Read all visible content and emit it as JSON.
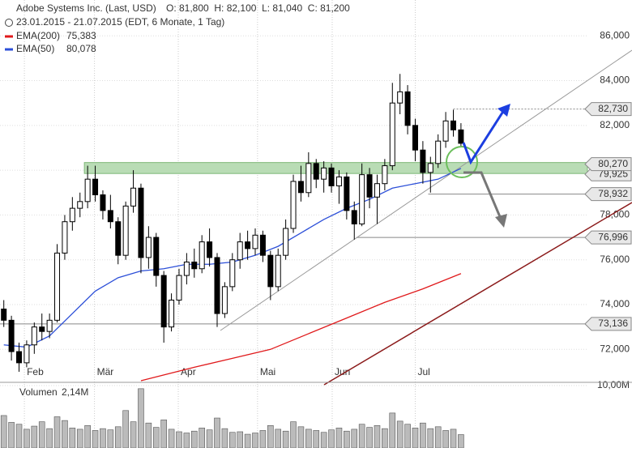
{
  "chart_data": {
    "type": "candlestick",
    "title": "Adobe Systems Inc. (Last, USD)",
    "ohlc_header": "O: 81,800  H: 82,100  L: 81,040  C: 81,200",
    "subtitle": "23.01.2015 - 21.07.2015 (EDT, 6 Monate, 1 Tag)",
    "ylim": [
      70.6,
      87.6
    ],
    "yticks": [
      {
        "value": 72,
        "label": "72,000"
      },
      {
        "value": 74,
        "label": "74,000"
      },
      {
        "value": 76,
        "label": "76,000"
      },
      {
        "value": 78,
        "label": "78,000"
      },
      {
        "value": 80,
        "label": "80,000"
      },
      {
        "value": 82,
        "label": "82,000"
      },
      {
        "value": 84,
        "label": "84,000"
      },
      {
        "value": 86,
        "label": "86,000"
      }
    ],
    "xlim": [
      -0.5,
      76.6
    ],
    "xticks": [
      {
        "value": 2.7,
        "label": "Feb"
      },
      {
        "value": 11.9,
        "label": "Mär"
      },
      {
        "value": 22.9,
        "label": "Apr"
      },
      {
        "value": 33.3,
        "label": "Mai"
      },
      {
        "value": 43.1,
        "label": "Jun"
      },
      {
        "value": 54,
        "label": "Jul"
      }
    ],
    "ohlc": [
      [
        73.8,
        74.2,
        73.0,
        73.3
      ],
      [
        73.3,
        73.5,
        71.5,
        71.9
      ],
      [
        71.9,
        72.3,
        71.0,
        71.4
      ],
      [
        71.4,
        72.4,
        71.2,
        72.2
      ],
      [
        72.2,
        73.2,
        71.8,
        73.0
      ],
      [
        73.0,
        73.6,
        72.4,
        72.8
      ],
      [
        72.8,
        73.6,
        72.5,
        73.3
      ],
      [
        73.3,
        76.7,
        73.2,
        76.3
      ],
      [
        76.3,
        78.0,
        76.0,
        77.7
      ],
      [
        77.7,
        78.8,
        77.3,
        78.3
      ],
      [
        78.3,
        79.0,
        77.9,
        78.6
      ],
      [
        78.6,
        80.2,
        78.3,
        79.6
      ],
      [
        79.6,
        80.2,
        78.6,
        78.9
      ],
      [
        78.9,
        79.1,
        77.8,
        78.2
      ],
      [
        78.2,
        78.9,
        77.4,
        77.7
      ],
      [
        77.7,
        77.9,
        75.8,
        76.2
      ],
      [
        76.2,
        78.6,
        76.0,
        78.4
      ],
      [
        78.4,
        80.0,
        78.1,
        79.2
      ],
      [
        79.2,
        79.4,
        75.4,
        76.1
      ],
      [
        76.1,
        77.5,
        75.6,
        77.0
      ],
      [
        77.0,
        77.2,
        74.8,
        75.3
      ],
      [
        75.3,
        75.5,
        72.3,
        73.0
      ],
      [
        73.0,
        74.5,
        72.8,
        74.2
      ],
      [
        74.2,
        75.6,
        74.0,
        75.3
      ],
      [
        75.3,
        76.3,
        74.9,
        75.9
      ],
      [
        75.9,
        76.5,
        75.2,
        75.6
      ],
      [
        75.6,
        77.1,
        75.4,
        76.8
      ],
      [
        76.8,
        77.4,
        75.7,
        76.1
      ],
      [
        76.1,
        76.3,
        73.0,
        73.6
      ],
      [
        73.6,
        75.0,
        73.4,
        74.8
      ],
      [
        74.8,
        76.3,
        74.6,
        76.0
      ],
      [
        76.0,
        77.2,
        75.6,
        76.8
      ],
      [
        76.8,
        77.3,
        76.0,
        76.5
      ],
      [
        76.5,
        77.4,
        76.2,
        77.1
      ],
      [
        77.1,
        77.3,
        75.9,
        76.2
      ],
      [
        76.2,
        76.4,
        74.2,
        74.8
      ],
      [
        74.8,
        76.5,
        74.6,
        76.2
      ],
      [
        76.2,
        77.8,
        76.0,
        77.4
      ],
      [
        77.4,
        79.8,
        77.2,
        79.5
      ],
      [
        79.5,
        80.2,
        78.6,
        79.0
      ],
      [
        79.0,
        80.8,
        78.8,
        80.3
      ],
      [
        80.3,
        80.5,
        79.2,
        79.6
      ],
      [
        79.6,
        80.4,
        79.0,
        80.1
      ],
      [
        80.1,
        80.3,
        79.0,
        79.3
      ],
      [
        79.3,
        80.0,
        78.5,
        79.7
      ],
      [
        79.7,
        79.9,
        77.8,
        78.2
      ],
      [
        78.2,
        78.6,
        76.9,
        77.6
      ],
      [
        77.6,
        80.3,
        77.5,
        79.8
      ],
      [
        79.8,
        80.1,
        78.3,
        78.8
      ],
      [
        78.8,
        79.8,
        77.6,
        79.4
      ],
      [
        79.4,
        80.5,
        79.1,
        80.2
      ],
      [
        80.2,
        83.9,
        80.0,
        83.0
      ],
      [
        83.0,
        84.3,
        82.5,
        83.5
      ],
      [
        83.5,
        83.8,
        81.6,
        82.0
      ],
      [
        82.0,
        82.3,
        80.4,
        80.9
      ],
      [
        80.9,
        81.3,
        79.4,
        79.9
      ],
      [
        79.9,
        80.6,
        79.0,
        80.3
      ],
      [
        80.3,
        81.6,
        80.1,
        81.3
      ],
      [
        81.3,
        82.6,
        81.0,
        82.2
      ],
      [
        82.2,
        82.7,
        81.5,
        81.8
      ],
      [
        81.8,
        82.1,
        81.04,
        81.2
      ]
    ],
    "series": [
      {
        "name": "EMA(200)",
        "value_label": "75,383",
        "color": "#e0191b",
        "x": [
          18,
          25,
          30,
          35,
          40,
          45,
          50,
          55,
          60
        ],
        "values": [
          70.6,
          71.2,
          71.6,
          72.0,
          72.7,
          73.4,
          74.1,
          74.7,
          75.383
        ]
      },
      {
        "name": "EMA(50)",
        "value_label": "80,078",
        "color": "#2c4fd8",
        "x": [
          0,
          3,
          6,
          9,
          12,
          15,
          18,
          21,
          24,
          27,
          30,
          33,
          36,
          39,
          42,
          45,
          48,
          51,
          54,
          57,
          60
        ],
        "values": [
          72.2,
          72.1,
          72.6,
          73.6,
          74.6,
          75.2,
          75.5,
          75.6,
          75.8,
          75.8,
          75.9,
          76.2,
          76.6,
          77.2,
          77.8,
          78.3,
          78.7,
          79.2,
          79.4,
          79.6,
          80.078
        ]
      }
    ],
    "levels": [
      {
        "value": 82.73,
        "label": "82,730"
      },
      {
        "value": 79.925,
        "label": "79,925"
      },
      {
        "value": 80.27,
        "label": "80,270"
      },
      {
        "value": 78.932,
        "label": "78,932"
      },
      {
        "value": 76.996,
        "label": "76,996"
      },
      {
        "value": 73.136,
        "label": "73,136"
      }
    ],
    "volume": {
      "label": "Volumen",
      "last_label": "2,14M",
      "ylim": [
        0,
        10
      ],
      "yticks": [
        {
          "value": 10,
          "label": "10,00M"
        }
      ],
      "values": [
        5.2,
        4.1,
        3.8,
        3.0,
        3.5,
        4.2,
        3.1,
        5.0,
        4.4,
        3.2,
        3.0,
        3.6,
        2.8,
        3.1,
        2.9,
        3.4,
        6.0,
        4.2,
        9.5,
        4.0,
        3.3,
        4.5,
        3.0,
        2.6,
        2.4,
        2.7,
        3.2,
        2.9,
        4.8,
        3.1,
        2.5,
        2.6,
        2.2,
        2.4,
        2.8,
        3.6,
        3.0,
        2.7,
        4.2,
        3.4,
        3.0,
        2.8,
        2.5,
        2.9,
        3.2,
        2.7,
        3.0,
        3.8,
        3.3,
        3.6,
        3.1,
        5.6,
        4.3,
        3.8,
        3.2,
        4.0,
        3.1,
        3.4,
        2.8,
        3.0,
        2.14
      ]
    }
  }
}
